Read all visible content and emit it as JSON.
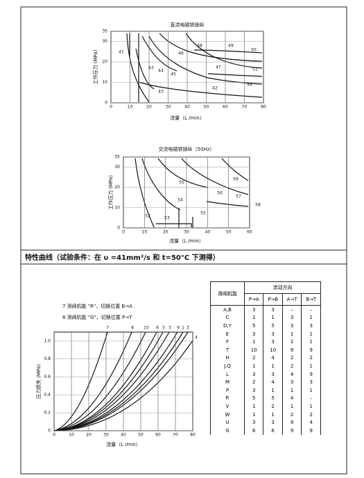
{
  "charts": [
    {
      "title": "直流电磁铁操纵",
      "ylabel": "工作压力 (MPa)",
      "xlabel": "流量（L /min）",
      "xlim": [
        0,
        80
      ],
      "ylim": [
        0,
        35
      ],
      "xticks": [
        0,
        10,
        20,
        30,
        40,
        50,
        60,
        70,
        80
      ],
      "yticks": [
        0,
        10,
        20,
        30,
        35
      ],
      "curve_labels": [
        "41",
        "42",
        "43",
        "43",
        "44",
        "44",
        "45",
        "46",
        "47",
        "48",
        "49",
        "50",
        "51"
      ]
    },
    {
      "title": "交流电磁铁操纵（50Hz）",
      "ylabel": "工作压力 (MPa)",
      "xlabel": "流量（L /min）",
      "xlim": [
        0,
        60
      ],
      "ylim": [
        0,
        35
      ],
      "xticks": [
        0,
        10,
        20,
        30,
        40,
        50,
        60
      ],
      "yticks": [
        0,
        10,
        20,
        30,
        35
      ],
      "curve_labels": [
        "52",
        "53",
        "54",
        "55",
        "55",
        "56",
        "57",
        "58",
        "59"
      ]
    },
    {
      "ylabel": "压力损失 (MPa)",
      "xlabel": "流量（L /min）",
      "xlim": [
        0,
        80
      ],
      "ylim": [
        0,
        1.1
      ],
      "xticks": [
        0,
        10,
        20,
        30,
        40,
        50,
        60,
        70,
        80
      ],
      "yticks": [
        0,
        0.2,
        0.4,
        0.6,
        0.8,
        {
          "value": 1,
          "label": "1.0"
        }
      ],
      "curve_labels": [
        "7",
        "8",
        "10",
        "6",
        "5",
        "3",
        "9",
        "1",
        "3",
        "4"
      ]
    }
  ],
  "caption": "特性曲线（试验条件：在 υ =41mm²/s 和 t=50°C 下测得）",
  "notes": [
    "7 滑阀机能 \"R\"，切换位置 B→A",
    "8 滑阀机能 \"G\"，切换位置 P→T"
  ],
  "table": {
    "header": "滑阀机能",
    "group": "流动方向",
    "columns": [
      "P→A",
      "P→B",
      "A→T",
      "B→T"
    ],
    "rows": [
      [
        "A,B",
        3,
        3,
        "–",
        "–"
      ],
      [
        "C",
        1,
        1,
        3,
        1
      ],
      [
        "D,Y",
        5,
        5,
        3,
        3
      ],
      [
        "E",
        3,
        3,
        1,
        1
      ],
      [
        "F",
        1,
        3,
        1,
        1
      ],
      [
        "T",
        10,
        10,
        9,
        9
      ],
      [
        "H",
        2,
        4,
        2,
        2
      ],
      [
        "J,Q",
        1,
        1,
        2,
        1
      ],
      [
        "L",
        3,
        3,
        4,
        9
      ],
      [
        "M",
        2,
        4,
        3,
        3
      ],
      [
        "P",
        3,
        1,
        1,
        1
      ],
      [
        "R",
        5,
        5,
        4,
        "–"
      ],
      [
        "V",
        1,
        2,
        1,
        1
      ],
      [
        "W",
        1,
        1,
        2,
        2
      ],
      [
        "U",
        3,
        3,
        9,
        4
      ],
      [
        "G",
        6,
        6,
        9,
        9
      ]
    ]
  }
}
